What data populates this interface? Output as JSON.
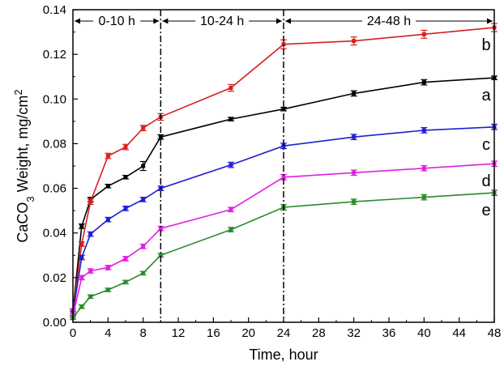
{
  "chart_data": {
    "type": "line",
    "xlabel": "Time, hour",
    "ylabel_main": "CaCO",
    "ylabel_sub": "3",
    "ylabel_mid": " Weight, mg/cm",
    "ylabel_sup": "2",
    "xlim": [
      0,
      48
    ],
    "ylim": [
      0,
      0.14
    ],
    "x_ticks": [
      "0",
      "4",
      "8",
      "12",
      "16",
      "20",
      "24",
      "28",
      "32",
      "36",
      "40",
      "44",
      "48"
    ],
    "y_ticks": [
      "0.00",
      "0.02",
      "0.04",
      "0.06",
      "0.08",
      "0.10",
      "0.12",
      "0.14"
    ],
    "grid": false,
    "regions": [
      {
        "label": "0-10 h",
        "from": 0,
        "to": 10
      },
      {
        "label": "10-24 h",
        "from": 10,
        "to": 24
      },
      {
        "label": "24-48 h",
        "from": 24,
        "to": 48
      }
    ],
    "dividers": [
      10,
      24
    ],
    "series": [
      {
        "name": "a",
        "color": "#000000",
        "x": [
          0,
          1,
          2,
          4,
          6,
          8,
          10,
          18,
          24,
          32,
          40,
          48
        ],
        "y": [
          0.005,
          0.043,
          0.055,
          0.061,
          0.065,
          0.07,
          0.083,
          0.091,
          0.0955,
          0.1025,
          0.1075,
          0.1095
        ],
        "err": [
          0.001,
          0.001,
          0.001,
          0.0008,
          0.0008,
          0.002,
          0.001,
          0.0008,
          0.0008,
          0.0012,
          0.0012,
          0.0008
        ]
      },
      {
        "name": "b",
        "color": "#d62020",
        "x": [
          0,
          1,
          2,
          4,
          6,
          8,
          10,
          18,
          24,
          32,
          40,
          48
        ],
        "y": [
          0.005,
          0.035,
          0.054,
          0.0745,
          0.0785,
          0.087,
          0.092,
          0.105,
          0.1245,
          0.126,
          0.129,
          0.132
        ],
        "err": [
          0.001,
          0.001,
          0.0012,
          0.0012,
          0.0012,
          0.0012,
          0.0015,
          0.0015,
          0.002,
          0.0018,
          0.0018,
          0.0018
        ]
      },
      {
        "name": "c",
        "color": "#1f1fd0",
        "x": [
          0,
          1,
          2,
          4,
          6,
          8,
          10,
          18,
          24,
          32,
          40,
          48
        ],
        "y": [
          0.004,
          0.029,
          0.0395,
          0.046,
          0.051,
          0.055,
          0.06,
          0.0705,
          0.079,
          0.083,
          0.086,
          0.0875
        ],
        "err": [
          0.001,
          0.001,
          0.001,
          0.001,
          0.001,
          0.001,
          0.001,
          0.0012,
          0.0012,
          0.0012,
          0.0012,
          0.0012
        ]
      },
      {
        "name": "d",
        "color": "#e020e0",
        "x": [
          0,
          1,
          2,
          4,
          6,
          8,
          10,
          18,
          24,
          32,
          40,
          48
        ],
        "y": [
          0.003,
          0.02,
          0.023,
          0.0245,
          0.0285,
          0.034,
          0.042,
          0.0505,
          0.065,
          0.067,
          0.069,
          0.071
        ],
        "err": [
          0.001,
          0.001,
          0.001,
          0.001,
          0.001,
          0.001,
          0.001,
          0.001,
          0.0012,
          0.0012,
          0.0012,
          0.0012
        ]
      },
      {
        "name": "e",
        "color": "#2a8a2a",
        "x": [
          0,
          1,
          2,
          4,
          6,
          8,
          10,
          18,
          24,
          32,
          40,
          48
        ],
        "y": [
          0.002,
          0.007,
          0.0115,
          0.0145,
          0.018,
          0.022,
          0.03,
          0.0415,
          0.0515,
          0.054,
          0.056,
          0.058
        ],
        "err": [
          0.0008,
          0.0008,
          0.0008,
          0.0008,
          0.0008,
          0.0008,
          0.0008,
          0.001,
          0.0012,
          0.0012,
          0.0012,
          0.0012
        ]
      }
    ]
  }
}
